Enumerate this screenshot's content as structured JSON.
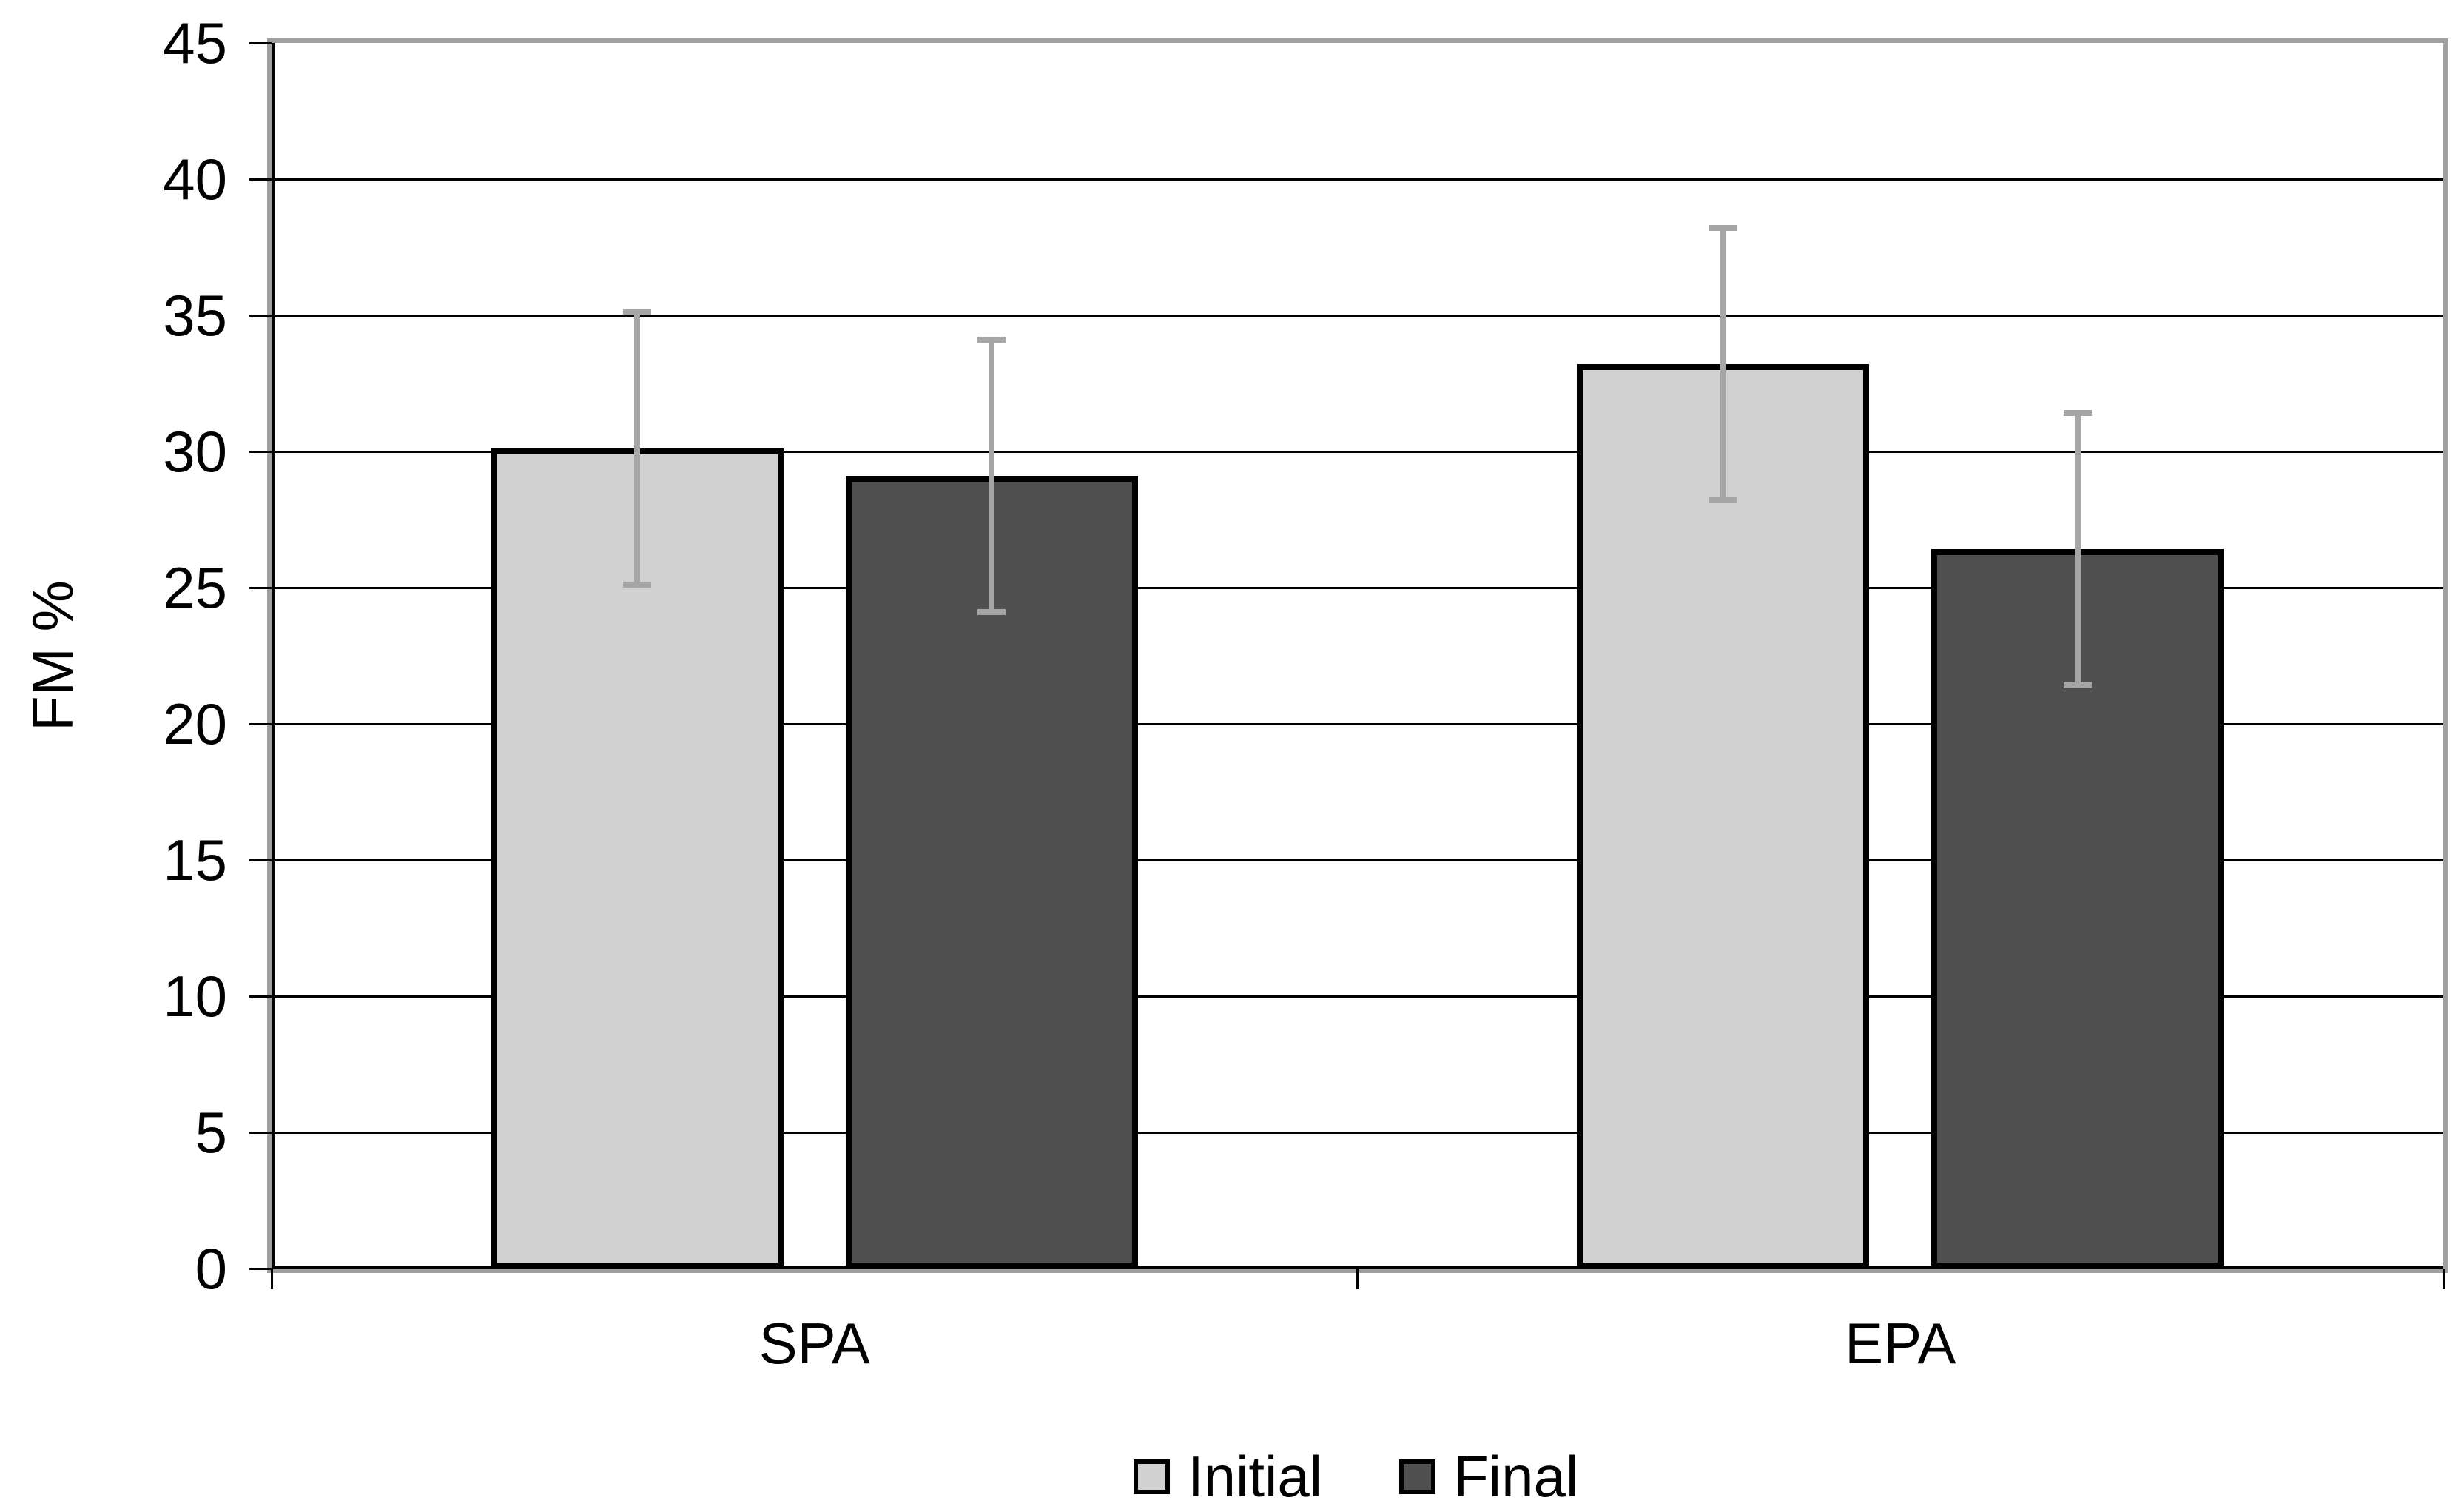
{
  "chart_data": {
    "type": "bar",
    "categories": [
      "SPA",
      "EPA"
    ],
    "series": [
      {
        "name": "Initial",
        "values": [
          30.1,
          33.2
        ],
        "error": [
          5.0,
          5.0
        ],
        "fill": "#D1D1D1"
      },
      {
        "name": "Final",
        "values": [
          29.1,
          26.4
        ],
        "error": [
          5.0,
          5.0
        ],
        "fill": "#4F4F4F"
      }
    ],
    "ylabel": "FM %",
    "ylim": [
      0,
      45
    ],
    "ytick_step": 5,
    "ytick_labels": [
      "0",
      "5",
      "10",
      "15",
      "20",
      "25",
      "30",
      "35",
      "40",
      "45"
    ],
    "grid": true,
    "legend_position": "bottom",
    "colors": {
      "error_bar": "#A6A6A6",
      "bar_border": "#000000",
      "gridline": "#000000",
      "axis": "#000000",
      "plot_border": "#A0A0A0",
      "background": "#FFFFFF"
    }
  }
}
